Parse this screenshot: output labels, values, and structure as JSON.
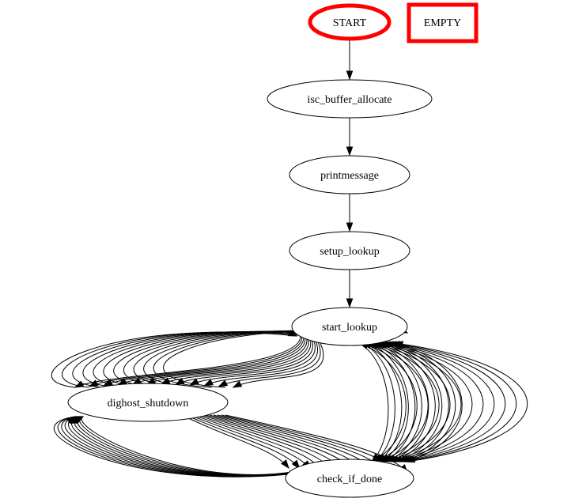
{
  "graph": {
    "colors": {
      "background": "#ffffff",
      "edge": "#000000",
      "default_border": "#000000",
      "highlight_border": "#ff0000"
    },
    "nodes": [
      {
        "id": "start",
        "label": "START",
        "shape": "ellipse",
        "border": "highlight"
      },
      {
        "id": "empty",
        "label": "EMPTY",
        "shape": "box",
        "border": "highlight"
      },
      {
        "id": "isc_buffer_allocate",
        "label": "isc_buffer_allocate",
        "shape": "ellipse",
        "border": "default"
      },
      {
        "id": "printmessage",
        "label": "printmessage",
        "shape": "ellipse",
        "border": "default"
      },
      {
        "id": "setup_lookup",
        "label": "setup_lookup",
        "shape": "ellipse",
        "border": "default"
      },
      {
        "id": "start_lookup",
        "label": "start_lookup",
        "shape": "ellipse",
        "border": "default"
      },
      {
        "id": "dighost_shutdown",
        "label": "dighost_shutdown",
        "shape": "ellipse",
        "border": "default"
      },
      {
        "id": "check_if_done",
        "label": "check_if_done",
        "shape": "ellipse",
        "border": "default"
      }
    ],
    "edges": [
      {
        "from": "start",
        "to": "isc_buffer_allocate",
        "count": 1
      },
      {
        "from": "isc_buffer_allocate",
        "to": "printmessage",
        "count": 1
      },
      {
        "from": "printmessage",
        "to": "setup_lookup",
        "count": 1
      },
      {
        "from": "setup_lookup",
        "to": "start_lookup",
        "count": 1
      },
      {
        "from": "start_lookup",
        "to": "dighost_shutdown",
        "count": 12
      },
      {
        "from": "dighost_shutdown",
        "to": "start_lookup",
        "count": 12
      },
      {
        "from": "start_lookup",
        "to": "check_if_done",
        "count": 12
      },
      {
        "from": "check_if_done",
        "to": "start_lookup",
        "count": 12
      },
      {
        "from": "dighost_shutdown",
        "to": "check_if_done",
        "count": 12
      },
      {
        "from": "check_if_done",
        "to": "dighost_shutdown",
        "count": 10
      }
    ]
  }
}
